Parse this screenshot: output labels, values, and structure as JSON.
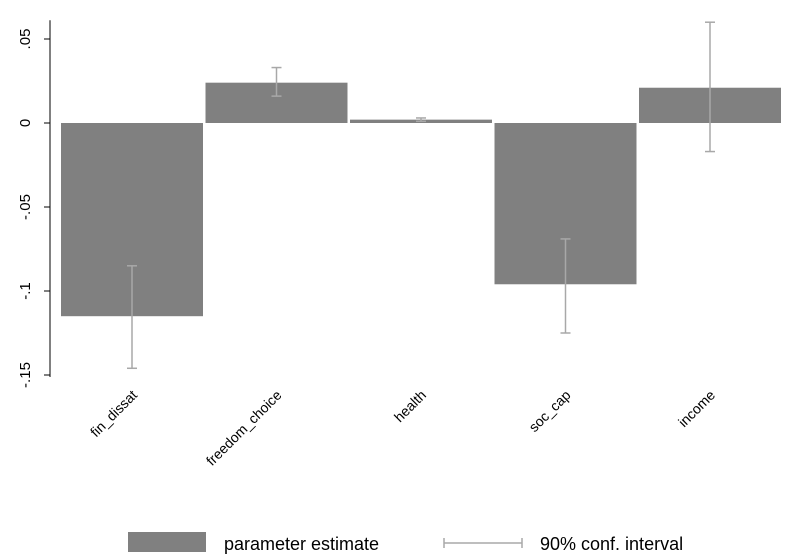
{
  "chart_data": {
    "type": "bar",
    "categories": [
      "fin_dissat",
      "freedom_choice",
      "health",
      "soc_cap",
      "income"
    ],
    "series": [
      {
        "name": "parameter estimate",
        "values": [
          -0.115,
          0.024,
          0.002,
          -0.096,
          0.021
        ],
        "ci_low": [
          -0.146,
          0.016,
          0.001,
          -0.125,
          -0.017
        ],
        "ci_high": [
          -0.085,
          0.033,
          0.003,
          -0.069,
          0.06
        ]
      }
    ],
    "ci_label": "90% conf. interval",
    "ylim": [
      -0.15,
      0.06
    ],
    "yticks": [
      {
        "value": -0.15,
        "label": "-.15"
      },
      {
        "value": -0.1,
        "label": "-.1"
      },
      {
        "value": -0.05,
        "label": "-.05"
      },
      {
        "value": 0,
        "label": "0"
      },
      {
        "value": 0.05,
        "label": ".05"
      }
    ],
    "grid": false,
    "legend_position": "bottom",
    "colors": {
      "bar": "#808080",
      "ci": "#a8a8a8",
      "axis": "#000000"
    }
  }
}
